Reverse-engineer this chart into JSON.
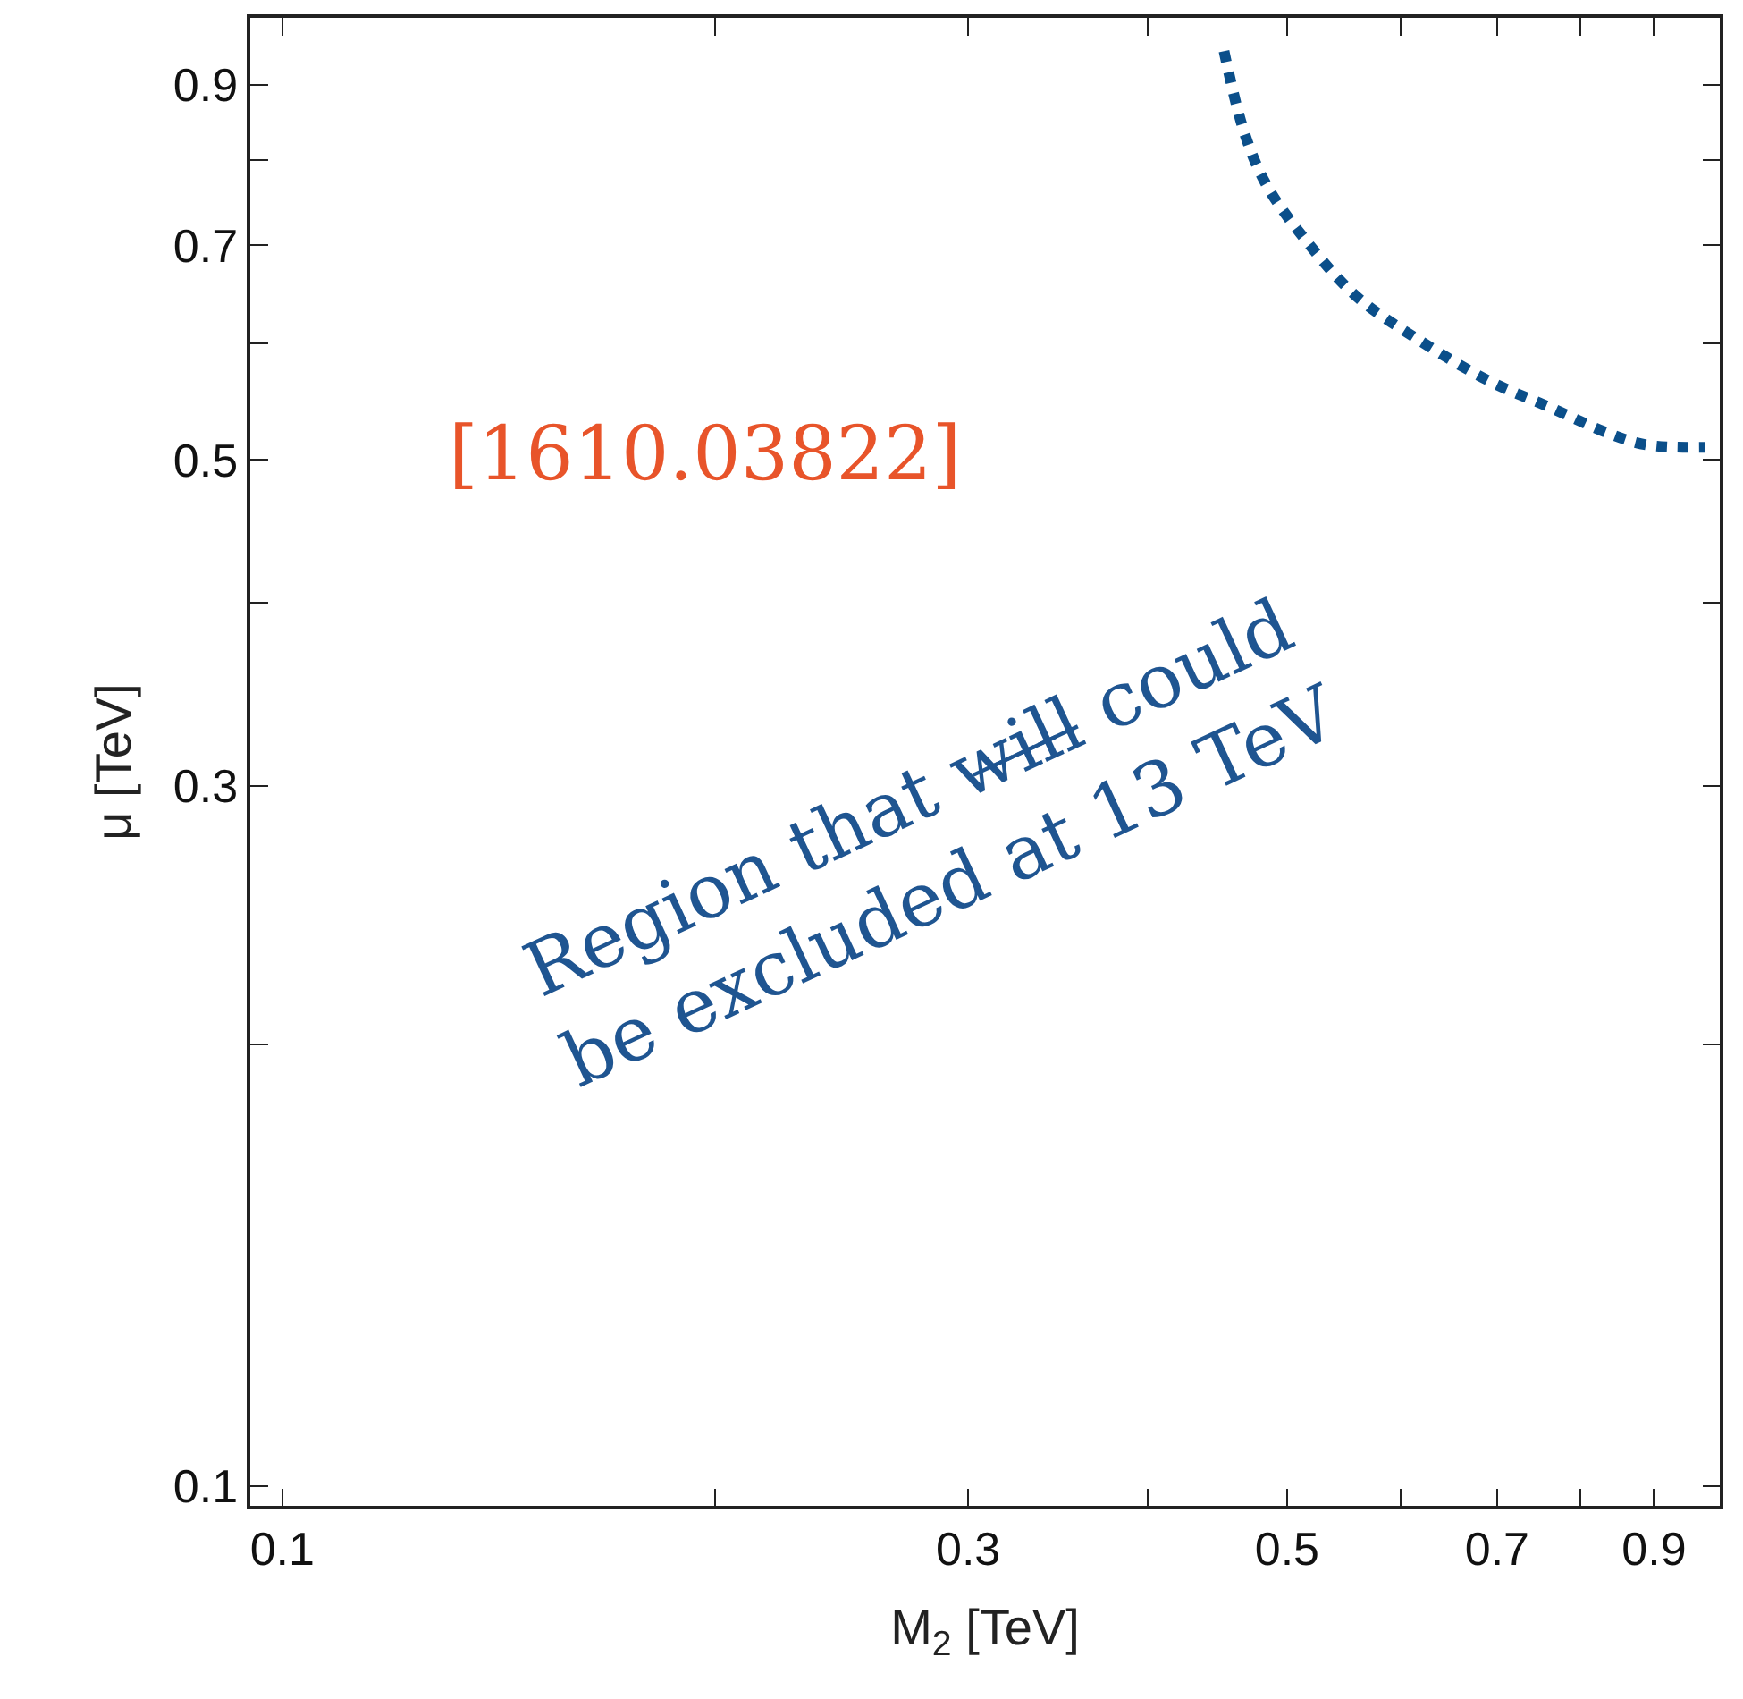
{
  "chart_data": {
    "type": "line",
    "xlabel": "M$_{2}$ [TeV]",
    "ylabel": "μ [TeV]",
    "log": "xy",
    "xlim": [
      0.095,
      1.0
    ],
    "ylim": [
      0.097,
      1.0
    ],
    "xticks": [
      0.1,
      {
        "value": 0.2,
        "label": null
      },
      0.3,
      {
        "value": 0.4,
        "label": null
      },
      0.5,
      {
        "value": 0.6,
        "label": null
      },
      0.7,
      {
        "value": 0.8,
        "label": null
      },
      0.9
    ],
    "yticks": [
      0.1,
      {
        "value": 0.2,
        "label": null
      },
      0.3,
      {
        "value": 0.4,
        "label": null
      },
      0.5,
      {
        "value": 0.6,
        "label": null
      },
      0.7,
      {
        "value": 0.8,
        "label": null
      },
      0.9
    ],
    "legend": false,
    "marker": "none",
    "line_style": "dotted",
    "series": [
      {
        "color": "#0b4f8a",
        "x": [
          0.452,
          0.467,
          0.484,
          0.518,
          0.56,
          0.615,
          0.691,
          0.762,
          0.838,
          0.889,
          0.977
        ],
        "values": [
          0.949,
          0.835,
          0.769,
          0.701,
          0.645,
          0.605,
          0.566,
          0.543,
          0.521,
          0.512,
          0.51
        ]
      }
    ],
    "annotations": [
      "[1610.03822]",
      "Region that w̶i̶l̶l̶ could\nbe excluded at 13 TeV"
    ]
  }
}
